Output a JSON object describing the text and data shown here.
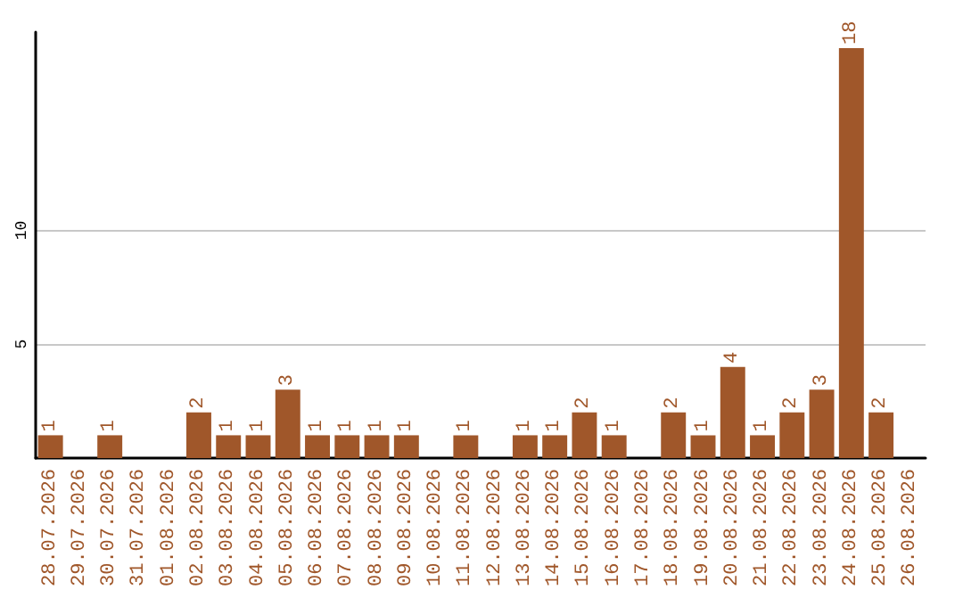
{
  "chart_data": {
    "type": "bar",
    "categories": [
      "28.07.2026",
      "29.07.2026",
      "30.07.2026",
      "31.07.2026",
      "01.08.2026",
      "02.08.2026",
      "03.08.2026",
      "04.08.2026",
      "05.08.2026",
      "06.08.2026",
      "07.08.2026",
      "08.08.2026",
      "09.08.2026",
      "10.08.2026",
      "11.08.2026",
      "12.08.2026",
      "13.08.2026",
      "14.08.2026",
      "15.08.2026",
      "16.08.2026",
      "17.08.2026",
      "18.08.2026",
      "19.08.2026",
      "20.08.2026",
      "21.08.2026",
      "22.08.2026",
      "23.08.2026",
      "24.08.2026",
      "25.08.2026",
      "26.08.2026"
    ],
    "values": [
      1,
      0,
      1,
      0,
      0,
      2,
      1,
      1,
      3,
      1,
      1,
      1,
      1,
      0,
      1,
      0,
      1,
      1,
      2,
      1,
      0,
      2,
      1,
      4,
      1,
      2,
      3,
      18,
      2,
      0
    ],
    "value_labels": [
      "1",
      null,
      "1",
      null,
      null,
      "2",
      "1",
      "1",
      "3",
      "1",
      "1",
      "1",
      "1",
      null,
      "1",
      null,
      "1",
      "1",
      "2",
      "1",
      null,
      "2",
      "1",
      "4",
      "1",
      "2",
      "3",
      "18",
      "2",
      null
    ],
    "color": "#a0572a",
    "ylim": [
      0,
      18.7
    ],
    "yticks": [
      5,
      10
    ],
    "grid": "y"
  }
}
